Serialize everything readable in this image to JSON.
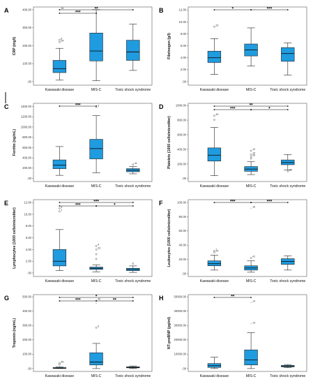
{
  "chart_data": [
    {
      "type": "boxplot",
      "panel_label": "A",
      "ylabel": "CRP (mg/l)",
      "categories": [
        "Kawasaki disease",
        "MIS-C",
        "Toxic shock syndrome"
      ],
      "yticks": [
        ".00",
        "100.00",
        "200.00",
        "300.00",
        "400.00"
      ],
      "ylim": [
        -20,
        415
      ],
      "color": "#1f9be0",
      "boxes": [
        {
          "whisker_low": 8,
          "q1": 50,
          "median": 72,
          "q3": 118,
          "whisker_high": 185
        },
        {
          "whisker_low": 5,
          "q1": 115,
          "median": 170,
          "q3": 270,
          "whisker_high": 400
        },
        {
          "whisker_low": 62,
          "q1": 118,
          "median": 165,
          "q3": 230,
          "whisker_high": 320
        }
      ],
      "outliers": [
        {
          "group": 0,
          "value": 400,
          "label": "34",
          "shape": "star"
        },
        {
          "group": 0,
          "value": 232,
          "label": "6",
          "shape": "circle"
        },
        {
          "group": 0,
          "value": 220,
          "label": "34",
          "shape": "circle"
        }
      ],
      "significance": [
        {
          "from": 0,
          "to": 2,
          "level": 0,
          "label": "**"
        },
        {
          "from": 0,
          "to": 1,
          "level": 1,
          "label": "***"
        }
      ]
    },
    {
      "type": "boxplot",
      "panel_label": "B",
      "ylabel": "Fibrinogen (g/l)",
      "categories": [
        "Kawasaki disease",
        "MIS-C",
        "Toxic shock syndrome"
      ],
      "yticks": [
        ".00",
        "2.00",
        "4.00",
        "6.00",
        "8.00",
        "10.00",
        "12.00"
      ],
      "ylim": [
        -0.6,
        12.5
      ],
      "color": "#1f9be0",
      "boxes": [
        {
          "whisker_low": 1.2,
          "q1": 3.2,
          "median": 4.0,
          "q3": 5.1,
          "whisker_high": 7.2
        },
        {
          "whisker_low": 2.6,
          "q1": 4.3,
          "median": 5.3,
          "q3": 6.3,
          "whisker_high": 9.0
        },
        {
          "whisker_low": 1.1,
          "q1": 3.4,
          "median": 4.7,
          "q3": 5.7,
          "whisker_high": 6.5
        }
      ],
      "outliers": [
        {
          "group": 0,
          "value": 9.2,
          "label": "33",
          "shape": "circle"
        }
      ],
      "significance": [
        {
          "from": 0,
          "to": 1,
          "level": 0,
          "label": "*"
        },
        {
          "from": 1,
          "to": 2,
          "level": 0,
          "label": "***"
        }
      ]
    },
    {
      "type": "boxplot",
      "panel_label": "C",
      "ylabel": "Ferritin (ng/mL)",
      "categories": [
        "Kawasaki disease",
        "MIS-C",
        "Toxic shock syndrome"
      ],
      "yticks": [
        ".00",
        "200.00",
        "400.00",
        "600.00",
        "800.00",
        "1000.00",
        "1200.00",
        "1400.00"
      ],
      "ylim": [
        -60,
        1460
      ],
      "color": "#1f9be0",
      "boxes": [
        {
          "whisker_low": 60,
          "q1": 190,
          "median": 260,
          "q3": 360,
          "whisker_high": 620
        },
        {
          "whisker_low": 110,
          "q1": 380,
          "median": 580,
          "q3": 760,
          "whisker_high": 1220
        },
        {
          "whisker_low": 90,
          "q1": 130,
          "median": 160,
          "q3": 190,
          "whisker_high": 230
        }
      ],
      "outliers": [
        {
          "group": 1,
          "value": 1390,
          "label": "3",
          "shape": "circle"
        },
        {
          "group": 2,
          "value": 270,
          "label": "41",
          "shape": "circle"
        }
      ],
      "significance": [
        {
          "from": 0,
          "to": 1,
          "level": 0,
          "label": "***"
        }
      ]
    },
    {
      "type": "boxplot",
      "panel_label": "D",
      "ylabel": "Platelets (1000 cells/microliter)",
      "categories": [
        "Kawasaki disease",
        "MIS-C",
        "Toxic shock syndrome"
      ],
      "yticks": [
        ".00",
        "200.00",
        "400.00",
        "600.00",
        "800.00",
        "1000.00"
      ],
      "ylim": [
        -40,
        1030
      ],
      "color": "#1f9be0",
      "boxes": [
        {
          "whisker_low": 40,
          "q1": 240,
          "median": 320,
          "q3": 420,
          "whisker_high": 700
        },
        {
          "whisker_low": 55,
          "q1": 100,
          "median": 130,
          "q3": 165,
          "whisker_high": 235
        },
        {
          "whisker_low": 120,
          "q1": 190,
          "median": 220,
          "q3": 255,
          "whisker_high": 330
        }
      ],
      "outliers": [
        {
          "group": 0,
          "value": 860,
          "label": "49",
          "shape": "circle"
        },
        {
          "group": 0,
          "value": 805,
          "label": "",
          "shape": "circle"
        },
        {
          "group": 1,
          "value": 380,
          "label": "10",
          "shape": "circle"
        },
        {
          "group": 1,
          "value": 330,
          "label": "15",
          "shape": "circle"
        },
        {
          "group": 1,
          "value": 300,
          "label": "26",
          "shape": "circle"
        },
        {
          "group": 1,
          "value": 275,
          "label": "",
          "shape": "circle"
        },
        {
          "group": 2,
          "value": 100,
          "label": "29",
          "shape": "circle"
        }
      ],
      "significance": [
        {
          "from": 0,
          "to": 2,
          "level": 0,
          "label": "**"
        },
        {
          "from": 0,
          "to": 1,
          "level": 1,
          "label": "***"
        },
        {
          "from": 1,
          "to": 2,
          "level": 1,
          "label": "*"
        }
      ]
    },
    {
      "type": "boxplot",
      "panel_label": "E",
      "ylabel": "Lymphocytes (1000 cells/microliter)",
      "categories": [
        "Kawasaki disease",
        "MIS-C",
        "Toxic shock syndrome"
      ],
      "yticks": [
        ".00",
        "2.00",
        "4.00",
        "6.00",
        "8.00",
        "10.00",
        "12.00"
      ],
      "ylim": [
        -0.6,
        12.5
      ],
      "color": "#1f9be0",
      "boxes": [
        {
          "whisker_low": 0.4,
          "q1": 1.2,
          "median": 2.0,
          "q3": 4.0,
          "whisker_high": 7.4
        },
        {
          "whisker_low": 0.2,
          "q1": 0.6,
          "median": 0.8,
          "q3": 1.0,
          "whisker_high": 1.4
        },
        {
          "whisker_low": 0.1,
          "q1": 0.4,
          "median": 0.6,
          "q3": 0.8,
          "whisker_high": 1.2
        }
      ],
      "outliers": [
        {
          "group": 0,
          "value": 11.0,
          "label": "5",
          "shape": "circle"
        },
        {
          "group": 0,
          "value": 10.5,
          "label": "1",
          "shape": "circle"
        },
        {
          "group": 1,
          "value": 4.6,
          "label": "4",
          "shape": "circle"
        },
        {
          "group": 1,
          "value": 4.0,
          "label": "33",
          "shape": "circle"
        },
        {
          "group": 1,
          "value": 3.2,
          "label": "",
          "shape": "circle"
        },
        {
          "group": 1,
          "value": 2.4,
          "label": "",
          "shape": "circle"
        },
        {
          "group": 2,
          "value": 1.6,
          "label": "",
          "shape": "circle"
        }
      ],
      "significance": [
        {
          "from": 0,
          "to": 2,
          "level": 0,
          "label": "***"
        },
        {
          "from": 0,
          "to": 1,
          "level": 1,
          "label": "***"
        },
        {
          "from": 1,
          "to": 2,
          "level": 1,
          "label": "*"
        }
      ]
    },
    {
      "type": "boxplot",
      "panel_label": "F",
      "ylabel": "Leukocytes (1000 cells/microliter)",
      "categories": [
        "Kawasaki disease",
        "MIS-C",
        "Toxic shock syndrome"
      ],
      "yticks": [
        ".00",
        "20.00",
        "40.00",
        "60.00",
        "80.00",
        "100.00"
      ],
      "ylim": [
        -4,
        104
      ],
      "color": "#1f9be0",
      "boxes": [
        {
          "whisker_low": 5,
          "q1": 11,
          "median": 14,
          "q3": 18,
          "whisker_high": 26
        },
        {
          "whisker_low": 2,
          "q1": 5,
          "median": 8,
          "q3": 11,
          "whisker_high": 18
        },
        {
          "whisker_low": 5,
          "q1": 13,
          "median": 17,
          "q3": 21,
          "whisker_high": 25
        }
      ],
      "outliers": [
        {
          "group": 0,
          "value": 32,
          "label": "1",
          "shape": "circle"
        },
        {
          "group": 0,
          "value": 30,
          "label": "14",
          "shape": "circle"
        },
        {
          "group": 1,
          "value": 92,
          "label": "16",
          "shape": "star"
        },
        {
          "group": 1,
          "value": 22,
          "label": "41",
          "shape": "circle"
        }
      ],
      "significance": [
        {
          "from": 0,
          "to": 1,
          "level": 0,
          "label": "***"
        },
        {
          "from": 1,
          "to": 2,
          "level": 0,
          "label": "***"
        }
      ]
    },
    {
      "type": "boxplot",
      "panel_label": "G",
      "ylabel": "Troponin (ng/mL)",
      "categories": [
        "Kawasaki disease",
        "MIS-C",
        "Toxic shock syndrome"
      ],
      "yticks": [
        ".00",
        "100.00",
        "200.00",
        "300.00",
        "400.00",
        "500.00"
      ],
      "ylim": [
        -20,
        515
      ],
      "color": "#1f9be0",
      "boxes": [
        {
          "whisker_low": 0,
          "q1": 1,
          "median": 3,
          "q3": 7,
          "whisker_high": 12
        },
        {
          "whisker_low": 0,
          "q1": 25,
          "median": 45,
          "q3": 110,
          "whisker_high": 175
        },
        {
          "whisker_low": 0,
          "q1": 5,
          "median": 8,
          "q3": 12,
          "whisker_high": 18
        }
      ],
      "outliers": [
        {
          "group": 0,
          "value": 38,
          "label": "46",
          "shape": "circle"
        },
        {
          "group": 0,
          "value": 28,
          "label": "",
          "shape": "circle"
        },
        {
          "group": 1,
          "value": 475,
          "label": "40",
          "shape": "star"
        },
        {
          "group": 1,
          "value": 455,
          "label": "",
          "shape": "star"
        },
        {
          "group": 1,
          "value": 285,
          "label": "9",
          "shape": "circle"
        }
      ],
      "significance": [
        {
          "from": 0,
          "to": 2,
          "level": 0,
          "label": "*"
        },
        {
          "from": 0,
          "to": 1,
          "level": 1,
          "label": "***"
        },
        {
          "from": 1,
          "to": 2,
          "level": 1,
          "label": "**"
        }
      ]
    },
    {
      "type": "boxplot",
      "panel_label": "H",
      "ylabel": "NT-proBNP (pg/ml)",
      "categories": [
        "Kawasaki disease",
        "MIS-C",
        "Toxic shock syndrome"
      ],
      "yticks": [
        ".00",
        "10000.00",
        "20000.00",
        "30000.00",
        "40000.00",
        "50000.00"
      ],
      "ylim": [
        -2000,
        51500
      ],
      "color": "#1f9be0",
      "boxes": [
        {
          "whisker_low": 0,
          "q1": 800,
          "median": 2000,
          "q3": 3500,
          "whisker_high": 8000
        },
        {
          "whisker_low": 0,
          "q1": 2500,
          "median": 6000,
          "q3": 13000,
          "whisker_high": 25000
        },
        {
          "whisker_low": 600,
          "q1": 1200,
          "median": 1600,
          "q3": 2200,
          "whisker_high": 2800
        }
      ],
      "outliers": [
        {
          "group": 1,
          "value": 46000,
          "label": "14",
          "shape": "star"
        },
        {
          "group": 1,
          "value": 31000,
          "label": "14",
          "shape": "star"
        }
      ],
      "significance": [
        {
          "from": 0,
          "to": 1,
          "level": 0,
          "label": "**"
        }
      ]
    }
  ]
}
